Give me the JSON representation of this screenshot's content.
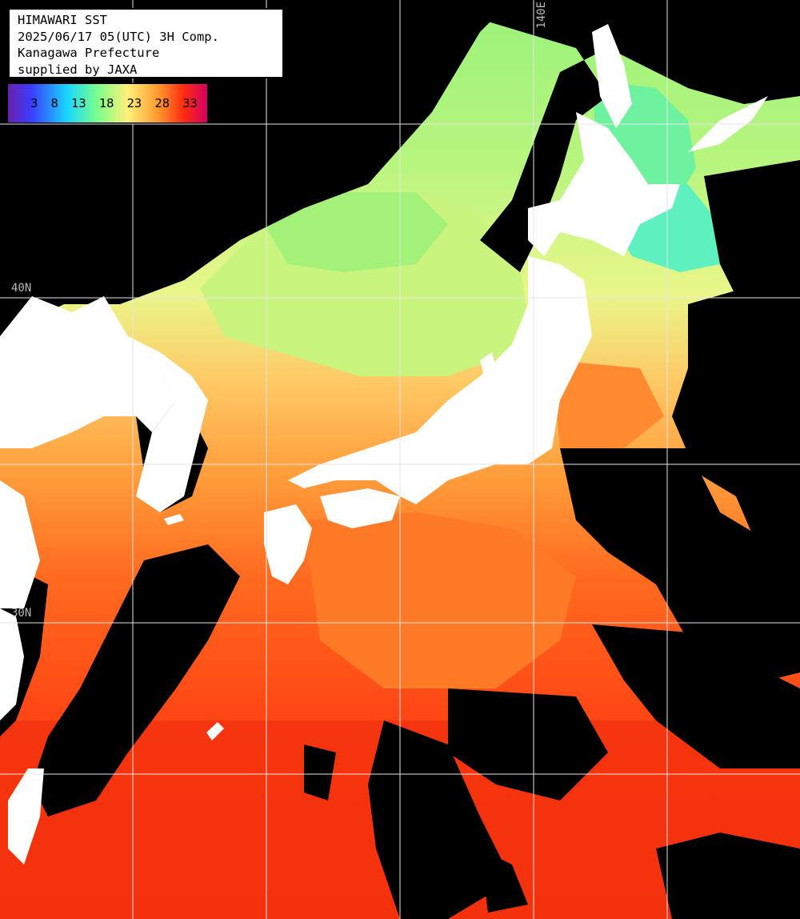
{
  "header": {
    "line1": "HIMAWARI SST",
    "line2": "2025/06/17 05(UTC) 3H Comp.",
    "line3": "Kanagawa Prefecture",
    "line4": "supplied by JAXA"
  },
  "scale": {
    "ticks": [
      "3",
      "8",
      "13",
      "18",
      "23",
      "28",
      "33"
    ],
    "colors": [
      "#6a1fa8",
      "#3b3cff",
      "#19d8ff",
      "#7cff8a",
      "#fff07a",
      "#ff9a2e",
      "#ff2a10",
      "#d10065"
    ]
  },
  "grid": {
    "lon_label": "140E",
    "lat_label_40": "40N",
    "lat_label_30": "30N"
  },
  "colors": {
    "land": "#ffffff",
    "cloud": "#000000",
    "grid": "#e6e6e6"
  }
}
